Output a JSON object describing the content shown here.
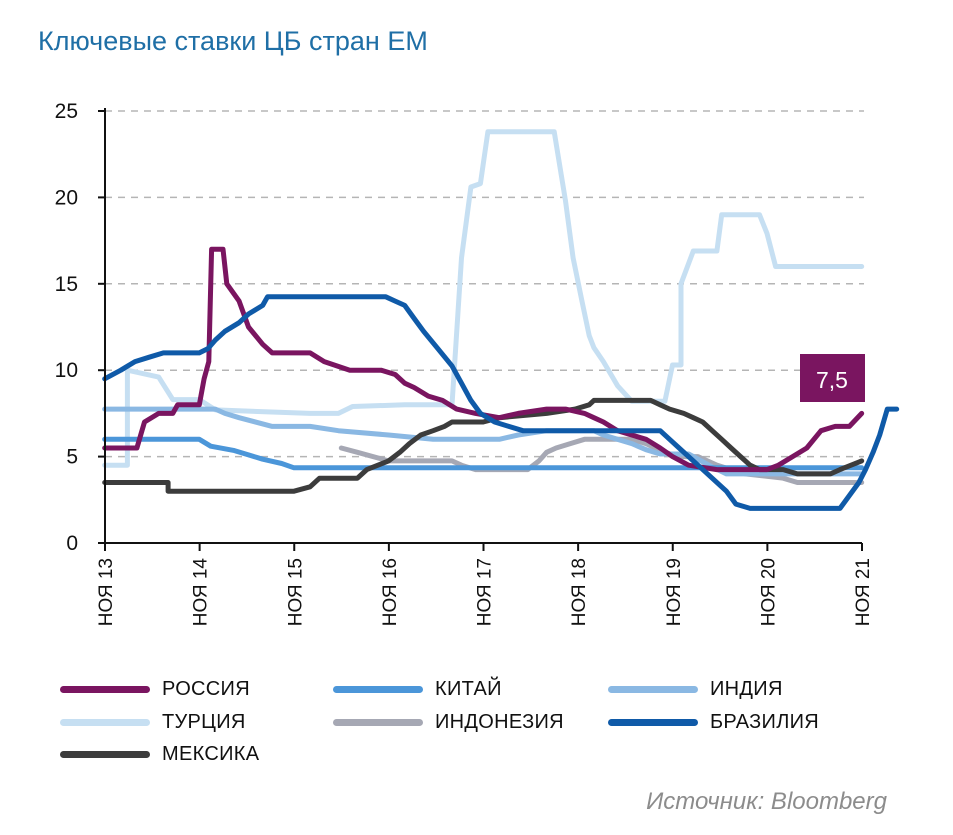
{
  "title": "Ключевые ставки ЦБ стран ЕМ",
  "source": "Источник: Bloomberg",
  "chart_data": {
    "type": "line",
    "title": "Ключевые ставки ЦБ стран ЕМ",
    "xlabel": "",
    "ylabel": "",
    "ylim": [
      0,
      25
    ],
    "xlim": [
      2013.833,
      2021.833
    ],
    "yticks": [
      "0",
      "5",
      "10",
      "15",
      "20",
      "25"
    ],
    "xticks": [
      "НОЯ 13",
      "НОЯ 14",
      "НОЯ 15",
      "НОЯ 16",
      "НОЯ 17",
      "НОЯ 18",
      "НОЯ 19",
      "НОЯ 20",
      "НОЯ 21"
    ],
    "grid": "horizontal dashed",
    "legend_position": "bottom",
    "annotation": {
      "text": "7,5",
      "series": "РОССИЯ",
      "color": "#7a1560"
    },
    "series": [
      {
        "name": "ТУРЦИЯ",
        "color": "#c6dff2",
        "points": [
          [
            2013.83,
            4.5
          ],
          [
            2014.07,
            4.5
          ],
          [
            2014.07,
            10.0
          ],
          [
            2014.4,
            9.6
          ],
          [
            2014.55,
            8.3
          ],
          [
            2014.83,
            8.3
          ],
          [
            2015.0,
            7.7
          ],
          [
            2016.0,
            7.5
          ],
          [
            2016.3,
            7.5
          ],
          [
            2016.45,
            7.9
          ],
          [
            2017.0,
            8.0
          ],
          [
            2017.5,
            8.0
          ],
          [
            2017.6,
            16.5
          ],
          [
            2017.7,
            20.6
          ],
          [
            2017.8,
            20.8
          ],
          [
            2017.88,
            23.8
          ],
          [
            2018.5,
            23.8
          ],
          [
            2018.58,
            23.8
          ],
          [
            2018.7,
            19.8
          ],
          [
            2018.78,
            16.5
          ],
          [
            2018.87,
            14.1
          ],
          [
            2018.95,
            12.0
          ],
          [
            2019.0,
            11.3
          ],
          [
            2019.1,
            10.5
          ],
          [
            2019.25,
            9.1
          ],
          [
            2019.4,
            8.2
          ],
          [
            2019.75,
            8.2
          ],
          [
            2019.83,
            10.3
          ],
          [
            2019.92,
            10.3
          ],
          [
            2019.92,
            15.0
          ],
          [
            2020.05,
            16.9
          ],
          [
            2020.3,
            16.9
          ],
          [
            2020.35,
            19.0
          ],
          [
            2020.75,
            19.0
          ],
          [
            2020.83,
            17.9
          ],
          [
            2020.92,
            16.0
          ],
          [
            2021.83,
            16.0
          ]
        ]
      },
      {
        "name": "РОССИЯ",
        "color": "#7a1560",
        "points": [
          [
            2013.83,
            5.5
          ],
          [
            2014.17,
            5.5
          ],
          [
            2014.25,
            7.0
          ],
          [
            2014.4,
            7.5
          ],
          [
            2014.55,
            7.5
          ],
          [
            2014.6,
            8.0
          ],
          [
            2014.83,
            8.0
          ],
          [
            2014.88,
            9.5
          ],
          [
            2014.93,
            10.5
          ],
          [
            2014.96,
            17.0
          ],
          [
            2015.08,
            17.0
          ],
          [
            2015.12,
            15.0
          ],
          [
            2015.25,
            14.0
          ],
          [
            2015.35,
            12.5
          ],
          [
            2015.5,
            11.5
          ],
          [
            2015.6,
            11.0
          ],
          [
            2016.0,
            11.0
          ],
          [
            2016.15,
            10.5
          ],
          [
            2016.42,
            10.0
          ],
          [
            2016.75,
            10.0
          ],
          [
            2016.9,
            9.75
          ],
          [
            2017.0,
            9.25
          ],
          [
            2017.1,
            9.0
          ],
          [
            2017.25,
            8.5
          ],
          [
            2017.4,
            8.25
          ],
          [
            2017.55,
            7.75
          ],
          [
            2017.75,
            7.5
          ],
          [
            2018.0,
            7.25
          ],
          [
            2018.2,
            7.5
          ],
          [
            2018.5,
            7.75
          ],
          [
            2018.7,
            7.75
          ],
          [
            2018.9,
            7.5
          ],
          [
            2019.0,
            7.25
          ],
          [
            2019.1,
            7.0
          ],
          [
            2019.25,
            6.5
          ],
          [
            2019.4,
            6.25
          ],
          [
            2019.55,
            6.0
          ],
          [
            2019.7,
            5.5
          ],
          [
            2019.83,
            5.0
          ],
          [
            2020.0,
            4.5
          ],
          [
            2020.3,
            4.25
          ],
          [
            2020.83,
            4.25
          ],
          [
            2020.95,
            4.5
          ],
          [
            2021.1,
            5.0
          ],
          [
            2021.25,
            5.5
          ],
          [
            2021.4,
            6.5
          ],
          [
            2021.55,
            6.75
          ],
          [
            2021.7,
            6.75
          ],
          [
            2021.83,
            7.5
          ]
        ]
      },
      {
        "name": "БРАЗИЛИЯ",
        "color": "#0f5aa8",
        "points": [
          [
            2013.83,
            9.5
          ],
          [
            2014.0,
            10.0
          ],
          [
            2014.15,
            10.5
          ],
          [
            2014.3,
            10.75
          ],
          [
            2014.45,
            11.0
          ],
          [
            2014.83,
            11.0
          ],
          [
            2014.92,
            11.25
          ],
          [
            2015.0,
            11.75
          ],
          [
            2015.1,
            12.25
          ],
          [
            2015.25,
            12.75
          ],
          [
            2015.35,
            13.25
          ],
          [
            2015.5,
            13.75
          ],
          [
            2015.55,
            14.25
          ],
          [
            2016.8,
            14.25
          ],
          [
            2016.9,
            14.0
          ],
          [
            2017.0,
            13.75
          ],
          [
            2017.1,
            13.0
          ],
          [
            2017.2,
            12.25
          ],
          [
            2017.35,
            11.25
          ],
          [
            2017.5,
            10.25
          ],
          [
            2017.6,
            9.25
          ],
          [
            2017.7,
            8.25
          ],
          [
            2017.8,
            7.5
          ],
          [
            2017.95,
            7.0
          ],
          [
            2018.1,
            6.75
          ],
          [
            2018.25,
            6.5
          ],
          [
            2019.7,
            6.5
          ],
          [
            2019.8,
            6.0
          ],
          [
            2019.9,
            5.5
          ],
          [
            2020.0,
            5.0
          ],
          [
            2020.1,
            4.5
          ],
          [
            2020.25,
            3.75
          ],
          [
            2020.4,
            3.0
          ],
          [
            2020.5,
            2.25
          ],
          [
            2020.65,
            2.0
          ],
          [
            2021.6,
            2.0
          ],
          [
            2021.7,
            2.75
          ],
          [
            2021.8,
            3.5
          ],
          [
            2021.87,
            4.25
          ],
          [
            2021.95,
            5.25
          ],
          [
            2022.02,
            6.25
          ],
          [
            2022.1,
            7.75
          ],
          [
            2022.2,
            7.75
          ]
        ]
      },
      {
        "name": "МЕКСИКА",
        "color": "#3c3c3c",
        "points": [
          [
            2013.83,
            3.5
          ],
          [
            2014.5,
            3.5
          ],
          [
            2014.5,
            3.0
          ],
          [
            2015.83,
            3.0
          ],
          [
            2016.0,
            3.25
          ],
          [
            2016.1,
            3.75
          ],
          [
            2016.5,
            3.75
          ],
          [
            2016.6,
            4.25
          ],
          [
            2016.83,
            4.75
          ],
          [
            2016.95,
            5.25
          ],
          [
            2017.05,
            5.75
          ],
          [
            2017.17,
            6.25
          ],
          [
            2017.3,
            6.5
          ],
          [
            2017.42,
            6.75
          ],
          [
            2017.5,
            7.0
          ],
          [
            2017.83,
            7.0
          ],
          [
            2018.0,
            7.25
          ],
          [
            2018.5,
            7.5
          ],
          [
            2018.8,
            7.75
          ],
          [
            2018.95,
            8.0
          ],
          [
            2019.0,
            8.25
          ],
          [
            2019.6,
            8.25
          ],
          [
            2019.7,
            8.0
          ],
          [
            2019.8,
            7.75
          ],
          [
            2019.95,
            7.5
          ],
          [
            2020.05,
            7.25
          ],
          [
            2020.15,
            7.0
          ],
          [
            2020.25,
            6.5
          ],
          [
            2020.35,
            6.0
          ],
          [
            2020.45,
            5.5
          ],
          [
            2020.55,
            5.0
          ],
          [
            2020.65,
            4.5
          ],
          [
            2020.75,
            4.25
          ],
          [
            2021.0,
            4.25
          ],
          [
            2021.15,
            4.0
          ],
          [
            2021.5,
            4.0
          ],
          [
            2021.6,
            4.25
          ],
          [
            2021.83,
            4.75
          ]
        ]
      },
      {
        "name": "КИТАЙ",
        "color": "#4b96d9",
        "points": [
          [
            2013.83,
            6.0
          ],
          [
            2014.83,
            6.0
          ],
          [
            2014.95,
            5.6
          ],
          [
            2015.2,
            5.35
          ],
          [
            2015.35,
            5.1
          ],
          [
            2015.5,
            4.85
          ],
          [
            2015.7,
            4.6
          ],
          [
            2015.83,
            4.35
          ],
          [
            2021.83,
            4.35
          ]
        ]
      },
      {
        "name": "ИНДИЯ",
        "color": "#8ab8e3",
        "points": [
          [
            2013.83,
            7.75
          ],
          [
            2015.0,
            7.75
          ],
          [
            2015.1,
            7.5
          ],
          [
            2015.25,
            7.25
          ],
          [
            2015.6,
            6.75
          ],
          [
            2016.0,
            6.75
          ],
          [
            2016.3,
            6.5
          ],
          [
            2016.83,
            6.25
          ],
          [
            2017.3,
            6.0
          ],
          [
            2018.0,
            6.0
          ],
          [
            2018.2,
            6.25
          ],
          [
            2018.5,
            6.5
          ],
          [
            2019.0,
            6.5
          ],
          [
            2019.1,
            6.25
          ],
          [
            2019.25,
            6.0
          ],
          [
            2019.4,
            5.75
          ],
          [
            2019.55,
            5.4
          ],
          [
            2019.7,
            5.15
          ],
          [
            2020.0,
            5.15
          ],
          [
            2020.25,
            4.4
          ],
          [
            2020.4,
            4.0
          ],
          [
            2021.83,
            4.0
          ]
        ]
      },
      {
        "name": "ИНДОНЕЗИЯ",
        "color": "#a6a8b4",
        "points": [
          [
            2016.33,
            5.5
          ],
          [
            2016.5,
            5.25
          ],
          [
            2016.83,
            4.75
          ],
          [
            2017.5,
            4.75
          ],
          [
            2017.6,
            4.5
          ],
          [
            2017.75,
            4.25
          ],
          [
            2018.3,
            4.25
          ],
          [
            2018.42,
            4.75
          ],
          [
            2018.5,
            5.25
          ],
          [
            2018.6,
            5.5
          ],
          [
            2018.75,
            5.75
          ],
          [
            2018.9,
            6.0
          ],
          [
            2019.4,
            6.0
          ],
          [
            2019.55,
            5.75
          ],
          [
            2019.65,
            5.5
          ],
          [
            2019.75,
            5.25
          ],
          [
            2019.9,
            5.0
          ],
          [
            2020.1,
            5.0
          ],
          [
            2020.2,
            4.75
          ],
          [
            2020.3,
            4.5
          ],
          [
            2020.45,
            4.25
          ],
          [
            2020.6,
            4.0
          ],
          [
            2021.0,
            3.75
          ],
          [
            2021.15,
            3.5
          ],
          [
            2021.83,
            3.5
          ]
        ]
      }
    ]
  },
  "legend": [
    {
      "label": "РОССИЯ",
      "color": "#7a1560"
    },
    {
      "label": "КИТАЙ",
      "color": "#4b96d9"
    },
    {
      "label": "ИНДИЯ",
      "color": "#8ab8e3"
    },
    {
      "label": "ТУРЦИЯ",
      "color": "#c6dff2"
    },
    {
      "label": "ИНДОНЕЗИЯ",
      "color": "#a6a8b4"
    },
    {
      "label": "БРАЗИЛИЯ",
      "color": "#0f5aa8"
    },
    {
      "label": "МЕКСИКА",
      "color": "#3c3c3c"
    }
  ]
}
